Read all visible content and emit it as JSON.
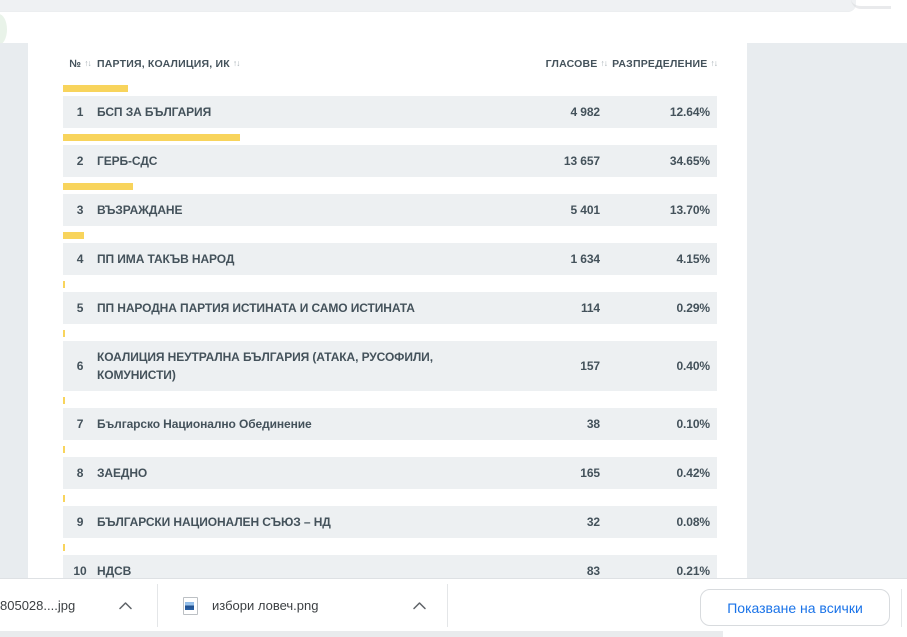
{
  "results_table": {
    "headers": {
      "number": "№",
      "party": "ПАРТИЯ, КОАЛИЦИЯ, ИК",
      "votes": "ГЛАСОВЕ",
      "distribution": "РАЗПРЕДЕЛЕНИЕ"
    },
    "rows": [
      {
        "number": "1",
        "party": "БСП ЗА БЪЛГАРИЯ",
        "votes": "4 982",
        "percent": "12.64%"
      },
      {
        "number": "2",
        "party": "ГЕРБ-СДС",
        "votes": "13 657",
        "percent": "34.65%"
      },
      {
        "number": "3",
        "party": "ВЪЗРАЖДАНЕ",
        "votes": "5 401",
        "percent": "13.70%"
      },
      {
        "number": "4",
        "party": "ПП ИМА ТАКЪВ НАРОД",
        "votes": "1 634",
        "percent": "4.15%"
      },
      {
        "number": "5",
        "party": "ПП НАРОДНА ПАРТИЯ ИСТИНАТА И САМО ИСТИНАТА",
        "votes": "114",
        "percent": "0.29%"
      },
      {
        "number": "6",
        "party": "КОАЛИЦИЯ НЕУТРАЛНА БЪЛГАРИЯ (АТАКА, РУСОФИЛИ, КОМУНИСТИ)",
        "votes": "157",
        "percent": "0.40%"
      },
      {
        "number": "7",
        "party": "Българско Национално Обединение",
        "votes": "38",
        "percent": "0.10%"
      },
      {
        "number": "8",
        "party": "ЗАЕДНО",
        "votes": "165",
        "percent": "0.42%"
      },
      {
        "number": "9",
        "party": "БЪЛГАРСКИ НАЦИОНАЛЕН СЪЮЗ – НД",
        "votes": "32",
        "percent": "0.08%"
      },
      {
        "number": "10",
        "party": "НДСВ",
        "votes": "83",
        "percent": "0.21%"
      }
    ]
  },
  "icons": {
    "sort": "↑↓"
  },
  "downloads_bar": {
    "items": [
      {
        "filename": "805028....jpg"
      },
      {
        "filename": "избори ловеч.png"
      }
    ],
    "show_all_label": "Показване на всички"
  },
  "colors": {
    "bar_yellow": "#f8d45c",
    "row_background": "#edf0f2",
    "page_background": "#e8ecef",
    "text_dark": "#44525b",
    "link_blue": "#1a73e8"
  }
}
